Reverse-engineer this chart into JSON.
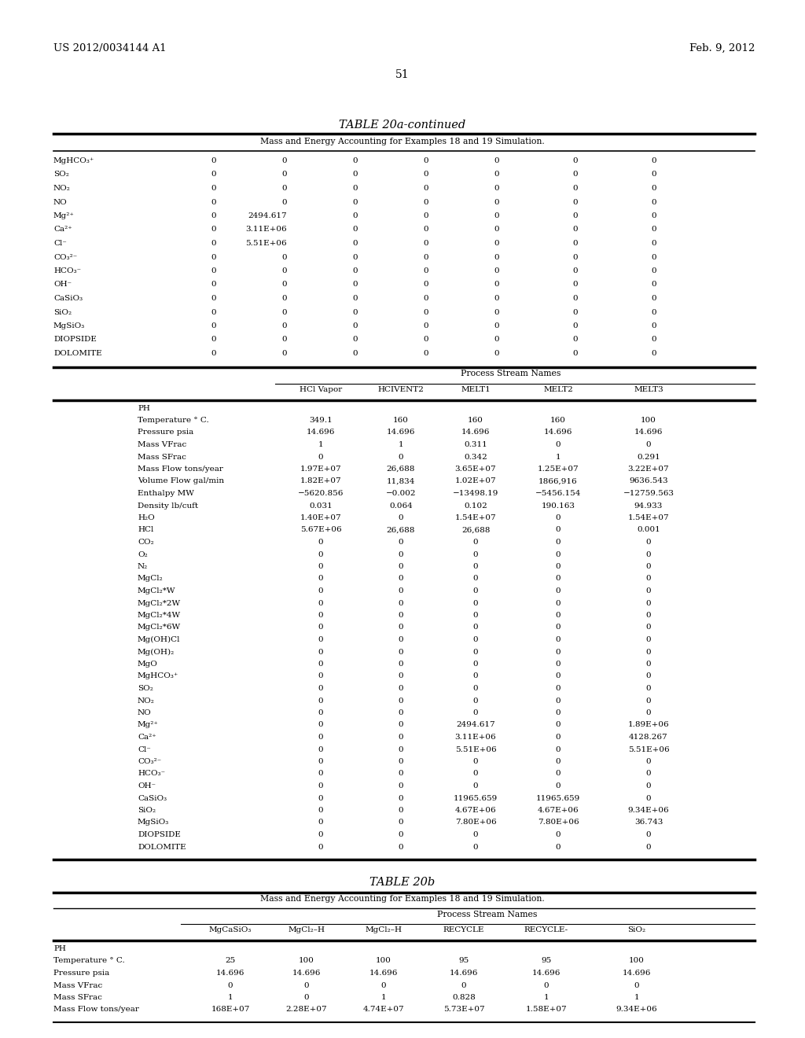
{
  "header_left": "US 2012/0034144 A1",
  "header_right": "Feb. 9, 2012",
  "page_number": "51",
  "table1_title": "TABLE 20a-continued",
  "table1_subtitle": "Mass and Energy Accounting for Examples 18 and 19 Simulation.",
  "table1_top_rows": [
    [
      "MgHCO₃⁺",
      "0",
      "0",
      "0",
      "0",
      "0",
      "0",
      "0"
    ],
    [
      "SO₂",
      "0",
      "0",
      "0",
      "0",
      "0",
      "0",
      "0"
    ],
    [
      "NO₂",
      "0",
      "0",
      "0",
      "0",
      "0",
      "0",
      "0"
    ],
    [
      "NO",
      "0",
      "0",
      "0",
      "0",
      "0",
      "0",
      "0"
    ],
    [
      "Mg²⁺",
      "0",
      "2494.617",
      "0",
      "0",
      "0",
      "0",
      "0"
    ],
    [
      "Ca²⁺",
      "0",
      "3.11E+06",
      "0",
      "0",
      "0",
      "0",
      "0"
    ],
    [
      "Cl⁻",
      "0",
      "5.51E+06",
      "0",
      "0",
      "0",
      "0",
      "0"
    ],
    [
      "CO₃²⁻",
      "0",
      "0",
      "0",
      "0",
      "0",
      "0",
      "0"
    ],
    [
      "HCO₃⁻",
      "0",
      "0",
      "0",
      "0",
      "0",
      "0",
      "0"
    ],
    [
      "OH⁻",
      "0",
      "0",
      "0",
      "0",
      "0",
      "0",
      "0"
    ],
    [
      "CaSiO₃",
      "0",
      "0",
      "0",
      "0",
      "0",
      "0",
      "0"
    ],
    [
      "SiO₂",
      "0",
      "0",
      "0",
      "0",
      "0",
      "0",
      "0"
    ],
    [
      "MgSiO₃",
      "0",
      "0",
      "0",
      "0",
      "0",
      "0",
      "0"
    ],
    [
      "DIOPSIDE",
      "0",
      "0",
      "0",
      "0",
      "0",
      "0",
      "0"
    ],
    [
      "DOLOMITE",
      "0",
      "0",
      "0",
      "0",
      "0",
      "0",
      "0"
    ]
  ],
  "table1_psn_label": "Process Stream Names",
  "table1_psn_cols": [
    "HCl Vapor",
    "HCIVENT2",
    "MELT1",
    "MELT2",
    "MELT3"
  ],
  "table1_bottom_rows": [
    [
      "PH",
      "",
      "",
      "",
      "",
      ""
    ],
    [
      "Temperature ° C.",
      "349.1",
      "160",
      "160",
      "160",
      "100"
    ],
    [
      "Pressure psia",
      "14.696",
      "14.696",
      "14.696",
      "14.696",
      "14.696"
    ],
    [
      "Mass VFrac",
      "1",
      "1",
      "0.311",
      "0",
      "0"
    ],
    [
      "Mass SFrac",
      "0",
      "0",
      "0.342",
      "1",
      "0.291"
    ],
    [
      "Mass Flow tons/year",
      "1.97E+07",
      "26,688",
      "3.65E+07",
      "1.25E+07",
      "3.22E+07"
    ],
    [
      "Volume Flow gal/min",
      "1.82E+07",
      "11,834",
      "1.02E+07",
      "1866,916",
      "9636.543"
    ],
    [
      "Enthalpy MW",
      "−5620.856",
      "−0.002",
      "−13498.19",
      "−5456.154",
      "−12759.563"
    ],
    [
      "Density lb/cuft",
      "0.031",
      "0.064",
      "0.102",
      "190.163",
      "94.933"
    ],
    [
      "H₂O",
      "1.40E+07",
      "0",
      "1.54E+07",
      "0",
      "1.54E+07"
    ],
    [
      "HCl",
      "5.67E+06",
      "26,688",
      "26,688",
      "0",
      "0.001"
    ],
    [
      "CO₂",
      "0",
      "0",
      "0",
      "0",
      "0"
    ],
    [
      "O₂",
      "0",
      "0",
      "0",
      "0",
      "0"
    ],
    [
      "N₂",
      "0",
      "0",
      "0",
      "0",
      "0"
    ],
    [
      "MgCl₂",
      "0",
      "0",
      "0",
      "0",
      "0"
    ],
    [
      "MgCl₂*W",
      "0",
      "0",
      "0",
      "0",
      "0"
    ],
    [
      "MgCl₂*2W",
      "0",
      "0",
      "0",
      "0",
      "0"
    ],
    [
      "MgCl₂*4W",
      "0",
      "0",
      "0",
      "0",
      "0"
    ],
    [
      "MgCl₂*6W",
      "0",
      "0",
      "0",
      "0",
      "0"
    ],
    [
      "Mg(OH)Cl",
      "0",
      "0",
      "0",
      "0",
      "0"
    ],
    [
      "Mg(OH)₂",
      "0",
      "0",
      "0",
      "0",
      "0"
    ],
    [
      "MgO",
      "0",
      "0",
      "0",
      "0",
      "0"
    ],
    [
      "MgHCO₃⁺",
      "0",
      "0",
      "0",
      "0",
      "0"
    ],
    [
      "SO₂",
      "0",
      "0",
      "0",
      "0",
      "0"
    ],
    [
      "NO₂",
      "0",
      "0",
      "0",
      "0",
      "0"
    ],
    [
      "NO",
      "0",
      "0",
      "0",
      "0",
      "0"
    ],
    [
      "Mg²⁺",
      "0",
      "0",
      "2494.617",
      "0",
      "1.89E+06"
    ],
    [
      "Ca²⁺",
      "0",
      "0",
      "3.11E+06",
      "0",
      "4128.267"
    ],
    [
      "Cl⁻",
      "0",
      "0",
      "5.51E+06",
      "0",
      "5.51E+06"
    ],
    [
      "CO₃²⁻",
      "0",
      "0",
      "0",
      "0",
      "0"
    ],
    [
      "HCO₃⁻",
      "0",
      "0",
      "0",
      "0",
      "0"
    ],
    [
      "OH⁻",
      "0",
      "0",
      "0",
      "0",
      "0"
    ],
    [
      "CaSiO₃",
      "0",
      "0",
      "11965.659",
      "11965.659",
      "0"
    ],
    [
      "SiO₂",
      "0",
      "0",
      "4.67E+06",
      "4.67E+06",
      "9.34E+06"
    ],
    [
      "MgSiO₃",
      "0",
      "0",
      "7.80E+06",
      "7.80E+06",
      "36.743"
    ],
    [
      "DIOPSIDE",
      "0",
      "0",
      "0",
      "0",
      "0"
    ],
    [
      "DOLOMITE",
      "0",
      "0",
      "0",
      "0",
      "0"
    ]
  ],
  "table2_title": "TABLE 20b",
  "table2_subtitle": "Mass and Energy Accounting for Examples 18 and 19 Simulation.",
  "table2_psn_label": "Process Stream Names",
  "table2_psn_cols": [
    "MgCaSiO₃",
    "MgCl₂–H",
    "MgCl₂–H",
    "RECYCLE",
    "RECYCLE-",
    "SiO₂"
  ],
  "table2_rows": [
    [
      "PH",
      "",
      "",
      "",
      "",
      "",
      ""
    ],
    [
      "Temperature ° C.",
      "25",
      "100",
      "100",
      "95",
      "95",
      "100"
    ],
    [
      "Pressure psia",
      "14.696",
      "14.696",
      "14.696",
      "14.696",
      "14.696",
      "14.696"
    ],
    [
      "Mass VFrac",
      "0",
      "0",
      "0",
      "0",
      "0",
      "0"
    ],
    [
      "Mass SFrac",
      "1",
      "0",
      "1",
      "0.828",
      "1",
      "1"
    ],
    [
      "Mass Flow tons/year",
      "168E+07",
      "2.28E+07",
      "4.74E+07",
      "5.73E+07",
      "1.58E+07",
      "9.34E+06"
    ]
  ]
}
